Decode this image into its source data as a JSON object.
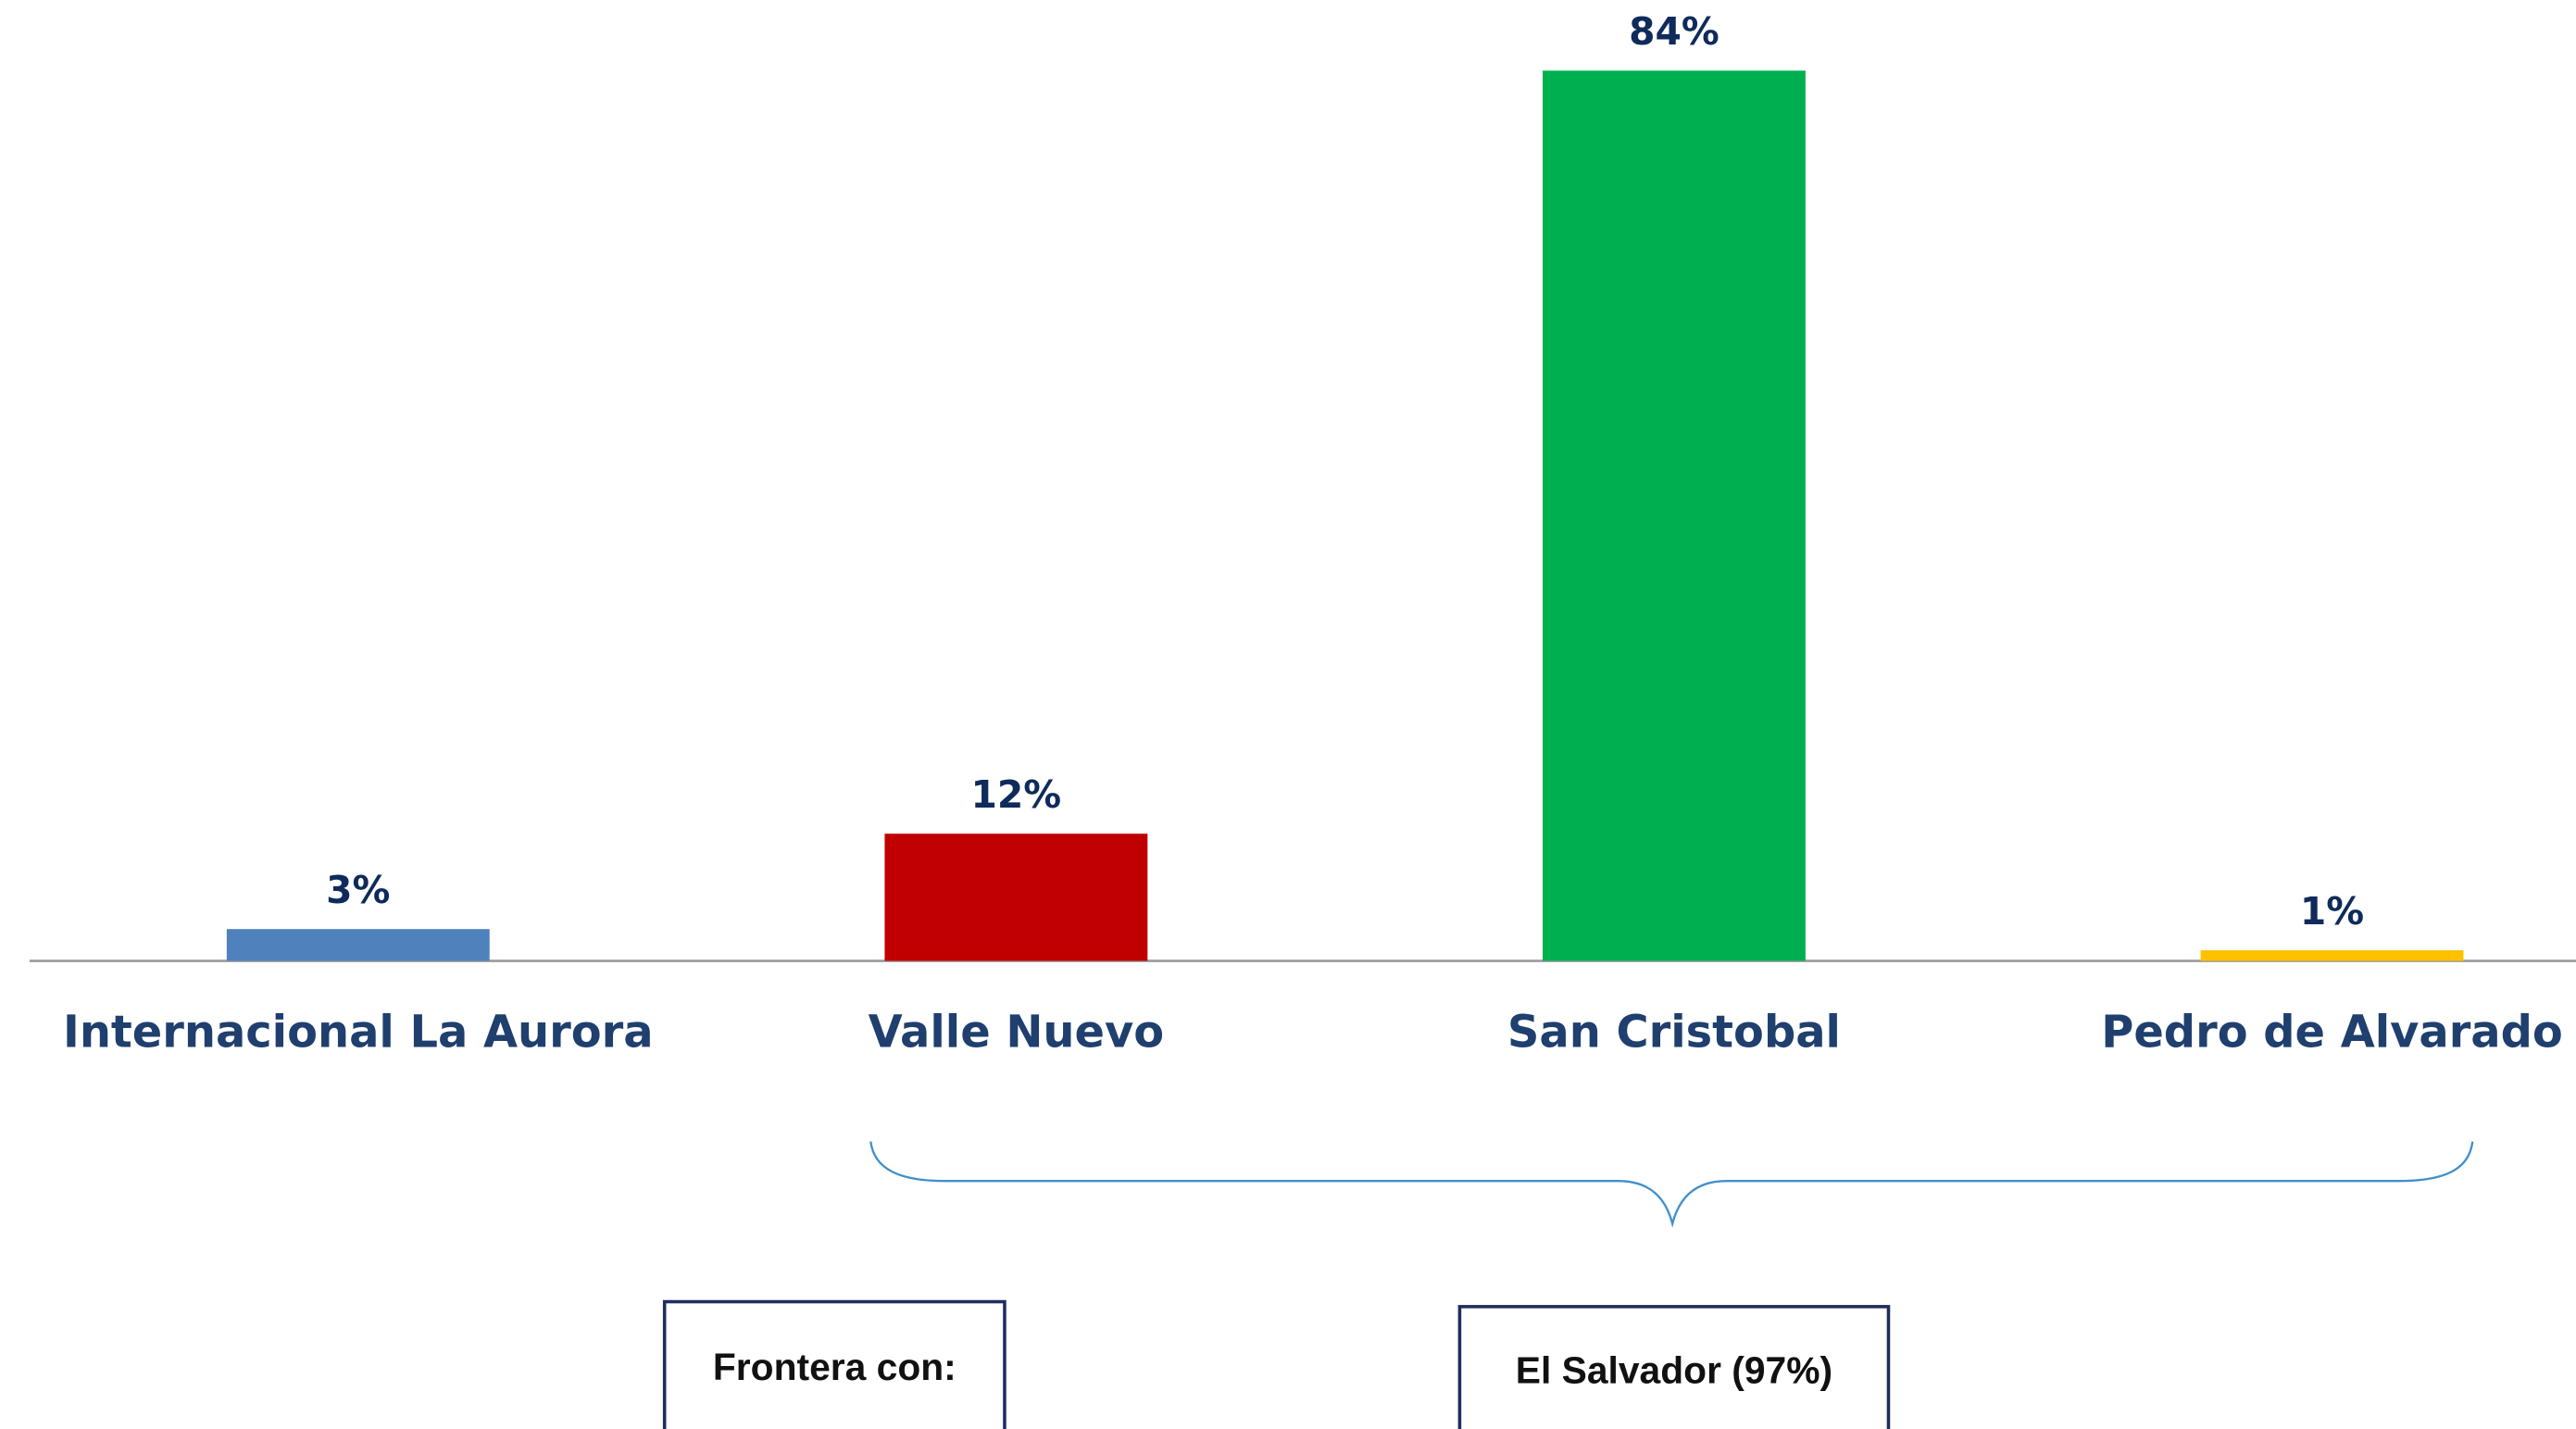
{
  "chart_data": {
    "type": "bar",
    "categories": [
      "Internacional La Aurora",
      "Valle Nuevo",
      "San Cristobal",
      "Pedro de Alvarado"
    ],
    "values": [
      3,
      12,
      84,
      1
    ],
    "value_labels": [
      "3%",
      "12%",
      "84%",
      "1%"
    ],
    "colors": [
      "#4f81bd",
      "#c00000",
      "#00b050",
      "#ffc000"
    ],
    "annotations": [
      "Frontera con:",
      "El Salvador (97%)"
    ]
  }
}
